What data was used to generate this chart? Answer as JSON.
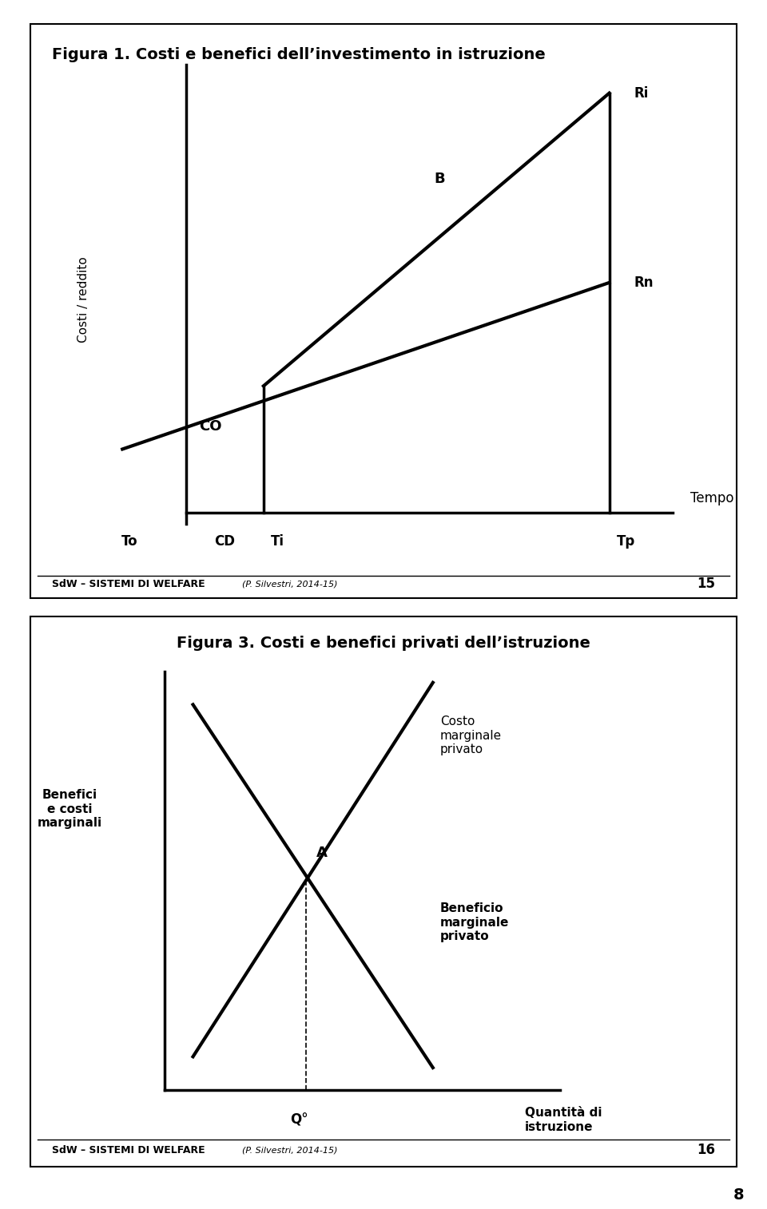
{
  "fig_width": 9.6,
  "fig_height": 15.14,
  "bg_color": "#ffffff",
  "line_color": "#000000",
  "line_width": 2.5,
  "font_family": "DejaVu Sans",
  "fig1": {
    "title": "Figura 1. Costi e benefici dell’investimento in istruzione",
    "title_fontsize": 14,
    "ylabel": "Costi / reddito",
    "ylabel_fontsize": 11,
    "xlabel_right": "Tempo",
    "xlabel_right_fontsize": 12
  },
  "fig2": {
    "title": "Figura 3. Costi e benefici privati dell’istruzione",
    "title_fontsize": 14,
    "ylabel": "Benefici\ne costi\nmarginali",
    "ylabel_fontsize": 11,
    "xlabel": "Quantità di\nistruzione",
    "xlabel_fontsize": 11
  },
  "footer_bold": "SdW – SISTEMI DI WELFARE",
  "footer_italic": "(P. Silvestri, 2014-15)",
  "footer_fontsize": 9,
  "page1": "15",
  "page2": "16",
  "page_number": "8"
}
